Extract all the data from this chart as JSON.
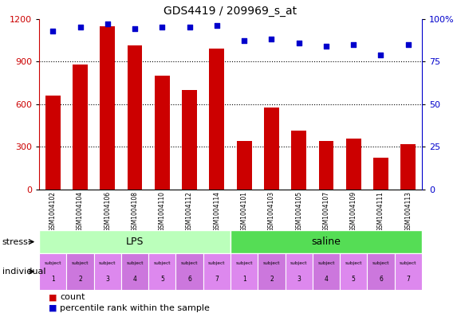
{
  "title": "GDS4419 / 209969_s_at",
  "samples": [
    "GSM1004102",
    "GSM1004104",
    "GSM1004106",
    "GSM1004108",
    "GSM1004110",
    "GSM1004112",
    "GSM1004114",
    "GSM1004101",
    "GSM1004103",
    "GSM1004105",
    "GSM1004107",
    "GSM1004109",
    "GSM1004111",
    "GSM1004113"
  ],
  "counts": [
    660,
    880,
    1150,
    1010,
    800,
    700,
    990,
    340,
    575,
    415,
    340,
    360,
    220,
    320
  ],
  "percentiles": [
    93,
    95,
    97,
    94,
    95,
    95,
    96,
    87,
    88,
    86,
    84,
    85,
    79,
    85
  ],
  "subjects": [
    1,
    2,
    3,
    4,
    5,
    6,
    7,
    1,
    2,
    3,
    4,
    5,
    6,
    7
  ],
  "bar_color": "#cc0000",
  "dot_color": "#0000cc",
  "lps_color": "#bbffbb",
  "saline_color": "#55dd55",
  "subject_odd_color": "#dd88ee",
  "subject_even_color": "#cc77dd",
  "bg_color": "#d8d8d8",
  "ylim_left": [
    0,
    1200
  ],
  "ylim_right": [
    0,
    100
  ],
  "yticks_left": [
    0,
    300,
    600,
    900,
    1200
  ],
  "yticks_right": [
    0,
    25,
    50,
    75,
    100
  ],
  "grid_vals": [
    300,
    600,
    900
  ],
  "n_lps": 7,
  "n_saline": 7
}
